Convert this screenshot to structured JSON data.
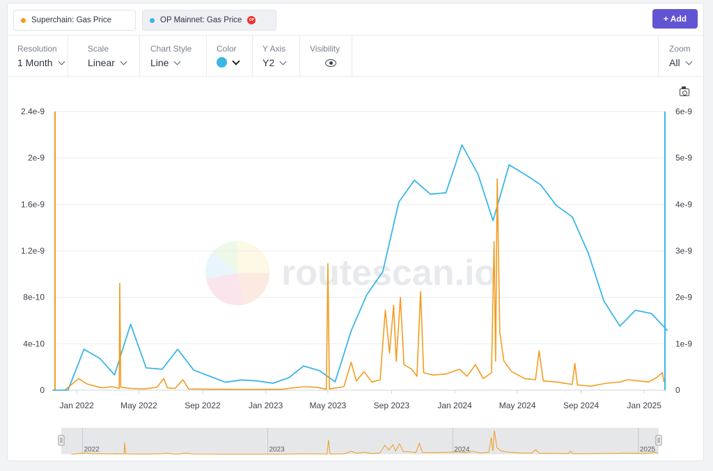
{
  "series_pills": [
    {
      "label": "Superchain: Gas Price",
      "color": "#f39b1f"
    },
    {
      "label": "OP Mainnet: Gas Price",
      "color": "#3bb5e8",
      "badge": "OP"
    }
  ],
  "add_button": "+ Add",
  "toolbar": {
    "resolution": {
      "label": "Resolution",
      "value": "1 Month"
    },
    "scale": {
      "label": "Scale",
      "value": "Linear"
    },
    "chart_style": {
      "label": "Chart Style",
      "value": "Line"
    },
    "color": {
      "label": "Color",
      "value": "#3bb5e8"
    },
    "y_axis": {
      "label": "Y Axis",
      "value": "Y2"
    },
    "visibility": {
      "label": "Visibility",
      "icon": "eye-icon"
    },
    "zoom": {
      "label": "Zoom",
      "value": "All"
    }
  },
  "watermark": "routescan.io",
  "chart_data": {
    "type": "line",
    "x_axis": {
      "ticks": [
        "Jan 2022",
        "May 2022",
        "Sep 2022",
        "Jan 2023",
        "May 2023",
        "Sep 2023",
        "Jan 2024",
        "May 2024",
        "Sep 2024",
        "Jan 2025"
      ]
    },
    "y_left": {
      "ticks": [
        "0",
        "4e-10",
        "8e-10",
        "1.2e-9",
        "1.6e-9",
        "2e-9",
        "2.4e-9"
      ],
      "range": [
        0,
        2.4e-09
      ]
    },
    "y_right": {
      "ticks": [
        "0",
        "1e-9",
        "2e-9",
        "3e-9",
        "4e-9",
        "5e-9",
        "6e-9"
      ],
      "range": [
        0,
        6e-09
      ]
    },
    "series": [
      {
        "axis": "right",
        "color": "#3bb5e8",
        "points": [
          [
            "2021-11",
            0.0
          ],
          [
            "2021-12",
            0.0
          ],
          [
            "2022-01",
            8.8e-10
          ],
          [
            "2022-02",
            6.8e-10
          ],
          [
            "2022-03",
            3.3e-10
          ],
          [
            "2022-04",
            1.42e-09
          ],
          [
            "2022-05",
            4.8e-10
          ],
          [
            "2022-06",
            4.5e-10
          ],
          [
            "2022-07",
            8.8e-10
          ],
          [
            "2022-08",
            4.3e-10
          ],
          [
            "2022-09",
            3e-10
          ],
          [
            "2022-10",
            1.7e-10
          ],
          [
            "2022-11",
            2.2e-10
          ],
          [
            "2022-12",
            2e-10
          ],
          [
            "2023-01",
            1.5e-10
          ],
          [
            "2023-02",
            2.7e-10
          ],
          [
            "2023-03",
            5.2e-10
          ],
          [
            "2023-04",
            4.2e-10
          ],
          [
            "2023-05",
            1.8e-10
          ],
          [
            "2023-06",
            1.28e-09
          ],
          [
            "2023-07",
            2.05e-09
          ],
          [
            "2023-08",
            2.55e-09
          ],
          [
            "2023-09",
            4.05e-09
          ],
          [
            "2023-10",
            4.52e-09
          ],
          [
            "2023-11",
            4.22e-09
          ],
          [
            "2023-12",
            4.25e-09
          ],
          [
            "2024-01",
            5.28e-09
          ],
          [
            "2024-02",
            4.65e-09
          ],
          [
            "2024-03",
            3.65e-09
          ],
          [
            "2024-04",
            4.85e-09
          ],
          [
            "2024-05",
            4.65e-09
          ],
          [
            "2024-06",
            4.42e-09
          ],
          [
            "2024-07",
            3.98e-09
          ],
          [
            "2024-08",
            3.73e-09
          ],
          [
            "2024-09",
            2.95e-09
          ],
          [
            "2024-10",
            1.92e-09
          ],
          [
            "2024-11",
            1.38e-09
          ],
          [
            "2024-12",
            1.72e-09
          ],
          [
            "2025-01",
            1.65e-09
          ],
          [
            "2025-02",
            1.28e-09
          ]
        ]
      },
      {
        "axis": "left",
        "color": "#f39b1f",
        "points": [
          [
            "2021-12-10",
            5e-12
          ],
          [
            "2021-12-25",
            6e-11
          ],
          [
            "2022-01-05",
            1e-10
          ],
          [
            "2022-01-20",
            5.5e-11
          ],
          [
            "2022-02-05",
            3.5e-11
          ],
          [
            "2022-02-20",
            2e-11
          ],
          [
            "2022-03-10",
            3e-11
          ],
          [
            "2022-03-24",
            1.5e-11
          ],
          [
            "2022-03-25",
            9.2e-10
          ],
          [
            "2022-03-27",
            2.5e-11
          ],
          [
            "2022-04-15",
            1.5e-11
          ],
          [
            "2022-05-10",
            1e-11
          ],
          [
            "2022-06-05",
            2.5e-11
          ],
          [
            "2022-06-18",
            1e-10
          ],
          [
            "2022-06-25",
            2e-11
          ],
          [
            "2022-07-10",
            1.5e-11
          ],
          [
            "2022-07-25",
            9e-11
          ],
          [
            "2022-08-05",
            1e-11
          ],
          [
            "2022-10-01",
            8e-12
          ],
          [
            "2022-12-01",
            6e-12
          ],
          [
            "2023-02-01",
            8e-12
          ],
          [
            "2023-03-15",
            3e-11
          ],
          [
            "2023-04-10",
            2.5e-11
          ],
          [
            "2023-04-28",
            8e-12
          ],
          [
            "2023-05-01",
            1.09e-09
          ],
          [
            "2023-05-04",
            1e-11
          ],
          [
            "2023-06-01",
            3e-11
          ],
          [
            "2023-06-15",
            2.4e-10
          ],
          [
            "2023-06-25",
            8e-11
          ],
          [
            "2023-07-10",
            1.6e-10
          ],
          [
            "2023-07-25",
            7e-11
          ],
          [
            "2023-08-10",
            9e-11
          ],
          [
            "2023-08-20",
            6.9e-10
          ],
          [
            "2023-08-28",
            3.2e-10
          ],
          [
            "2023-09-05",
            7.3e-10
          ],
          [
            "2023-09-10",
            2.5e-10
          ],
          [
            "2023-09-18",
            8e-10
          ],
          [
            "2023-09-25",
            2.2e-10
          ],
          [
            "2023-10-10",
            1.8e-10
          ],
          [
            "2023-10-20",
            1.2e-10
          ],
          [
            "2023-10-27",
            8.5e-10
          ],
          [
            "2023-11-02",
            1.5e-10
          ],
          [
            "2023-11-20",
            1.3e-10
          ],
          [
            "2023-12-15",
            1.4e-10
          ],
          [
            "2024-01-10",
            1.8e-10
          ],
          [
            "2024-01-25",
            1.2e-10
          ],
          [
            "2024-02-10",
            2.2e-10
          ],
          [
            "2024-02-25",
            1e-10
          ],
          [
            "2024-03-12",
            1.5e-10
          ],
          [
            "2024-03-17",
            1.28e-09
          ],
          [
            "2024-03-20",
            2.5e-10
          ],
          [
            "2024-03-23",
            1.82e-09
          ],
          [
            "2024-03-28",
            5e-10
          ],
          [
            "2024-04-05",
            2.5e-10
          ],
          [
            "2024-04-20",
            1.6e-10
          ],
          [
            "2024-05-15",
            1e-10
          ],
          [
            "2024-06-05",
            9e-11
          ],
          [
            "2024-06-12",
            3.4e-10
          ],
          [
            "2024-06-20",
            8e-11
          ],
          [
            "2024-07-15",
            7e-11
          ],
          [
            "2024-08-15",
            5e-11
          ],
          [
            "2024-08-20",
            2.3e-10
          ],
          [
            "2024-08-25",
            4.5e-11
          ],
          [
            "2024-09-20",
            3.5e-11
          ],
          [
            "2024-10-20",
            6e-11
          ],
          [
            "2024-11-15",
            7e-11
          ],
          [
            "2024-12-01",
            9e-11
          ],
          [
            "2024-12-20",
            8e-11
          ],
          [
            "2025-01-10",
            7e-11
          ],
          [
            "2025-01-25",
            1.1e-10
          ],
          [
            "2025-02-05",
            1.5e-10
          ],
          [
            "2025-02-08",
            7e-11
          ]
        ]
      }
    ],
    "navigator": {
      "labels": [
        "2022",
        "2023",
        "2024",
        "2025"
      ]
    }
  }
}
